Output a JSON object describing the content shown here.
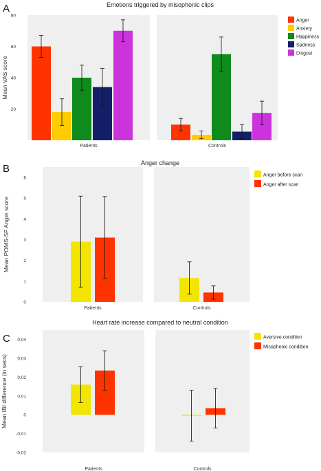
{
  "chart_data": [
    {
      "panel_letter": "A",
      "type": "bar",
      "title": "Emotions triggered by misophonic clips",
      "ylabel": "Mean VAS score",
      "ylim": [
        0,
        80
      ],
      "yticks": [
        "20",
        "40",
        "60",
        "80"
      ],
      "groups": [
        "Patients",
        "Controls"
      ],
      "legend_position": "right",
      "series": [
        {
          "name": "Anger",
          "color": "#ff3300",
          "values": [
            60,
            10
          ],
          "errors": [
            7,
            4
          ]
        },
        {
          "name": "Anxiety",
          "color": "#ffcc00",
          "values": [
            18,
            3.5
          ],
          "errors": [
            8.5,
            2.5
          ]
        },
        {
          "name": "Happiness",
          "color": "#0f8a1c",
          "values": [
            40,
            55
          ],
          "errors": [
            8,
            11
          ]
        },
        {
          "name": "Sadness",
          "color": "#141e6b",
          "values": [
            34,
            5.5
          ],
          "errors": [
            12,
            4.5
          ]
        },
        {
          "name": "Disgust",
          "color": "#cc33dd",
          "values": [
            70,
            17.5
          ],
          "errors": [
            7,
            7.5
          ]
        }
      ]
    },
    {
      "panel_letter": "B",
      "type": "bar",
      "title": "Anger change",
      "ylabel": "Mean POMS-SF Anger score",
      "ylim": [
        0,
        6.5
      ],
      "yticks": [
        "0",
        "1",
        "2",
        "3",
        "4",
        "5",
        "6"
      ],
      "groups": [
        "Patients",
        "Controls"
      ],
      "legend_position": "right",
      "series": [
        {
          "name": "Anger before scan",
          "color": "#f2e600",
          "values": [
            2.9,
            1.15
          ],
          "errors": [
            2.2,
            0.78
          ]
        },
        {
          "name": "Anger after scan",
          "color": "#ff3300",
          "values": [
            3.1,
            0.45
          ],
          "errors": [
            1.98,
            0.32
          ]
        }
      ]
    },
    {
      "panel_letter": "C",
      "type": "bar",
      "title": "Heart rate increase compared to neutral condition",
      "ylabel": "Mean IBI difference (in secs)",
      "ylim": [
        -0.02,
        0.045
      ],
      "yticks": [
        "-0,02",
        "-0,01",
        "0",
        "0,01",
        "0,02",
        "0,03",
        "0,04"
      ],
      "groups": [
        "Patients",
        "Controls"
      ],
      "legend_position": "right",
      "series": [
        {
          "name": "Aversive condition",
          "color": "#f2e600",
          "values": [
            0.016,
            -0.0005
          ],
          "errors": [
            0.0095,
            0.0135
          ]
        },
        {
          "name": "Misophonic condition",
          "color": "#ff3300",
          "values": [
            0.0235,
            0.0035
          ],
          "errors": [
            0.0105,
            0.0105
          ]
        }
      ]
    }
  ]
}
